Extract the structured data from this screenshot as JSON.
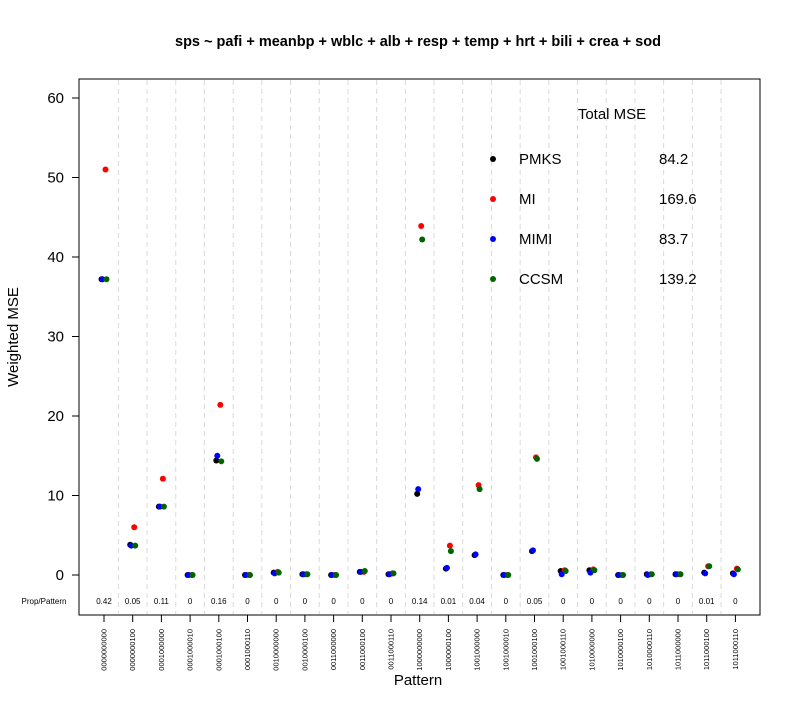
{
  "chart_data": {
    "type": "scatter",
    "title": "sps ~ pafi + meanbp + wblc + alb + resp + temp + hrt + bili + crea + sod",
    "xlabel": "Pattern",
    "ylabel": "Weighted MSE",
    "ylim": [
      0,
      60
    ],
    "yticks": [
      "0",
      "10",
      "20",
      "30",
      "40",
      "50",
      "60"
    ],
    "grid": "vertical dashed",
    "categories": [
      "0000000000",
      "0000000100",
      "0001000000",
      "0001000010",
      "0001000100",
      "0001000110",
      "0010000000",
      "0010000100",
      "0011000000",
      "0011000100",
      "0011000110",
      "1000000000",
      "1000000100",
      "1001000000",
      "1001000010",
      "1001000100",
      "1001000110",
      "1010000000",
      "1010000100",
      "1010000110",
      "1011000000",
      "1011000100",
      "1011000110"
    ],
    "prop_label": "Prop/Pattern",
    "prop_values": [
      "0.42",
      "0.05",
      "0.11",
      "0",
      "0.16",
      "0",
      "0",
      "0",
      "0",
      "0",
      "0",
      "0.14",
      "0.01",
      "0.04",
      "0",
      "0.05",
      "0",
      "0",
      "0",
      "0",
      "0",
      "0.01",
      "0"
    ],
    "series": [
      {
        "name": "PMKS",
        "color": "#000000",
        "values": [
          37.2,
          3.8,
          8.6,
          0.0,
          14.4,
          0.0,
          0.3,
          0.1,
          0.0,
          0.4,
          0.1,
          10.2,
          0.8,
          2.5,
          0.0,
          3.0,
          0.5,
          0.6,
          0.0,
          0.1,
          0.1,
          0.3,
          0.2
        ]
      },
      {
        "name": "MI",
        "color": "#ff0000",
        "values": [
          51.0,
          6.0,
          12.1,
          0.0,
          21.4,
          0.0,
          0.4,
          0.1,
          0.0,
          0.4,
          0.2,
          43.9,
          3.7,
          11.3,
          0.0,
          14.8,
          0.6,
          0.7,
          0.0,
          0.1,
          0.1,
          1.1,
          0.8
        ]
      },
      {
        "name": "MIMI",
        "color": "#0000ff",
        "values": [
          37.2,
          3.7,
          8.6,
          0.0,
          15.0,
          0.0,
          0.2,
          0.1,
          0.0,
          0.4,
          0.1,
          10.8,
          0.9,
          2.6,
          0.0,
          3.1,
          0.1,
          0.3,
          0.0,
          0.0,
          0.1,
          0.2,
          0.1
        ]
      },
      {
        "name": "CCSM",
        "color": "#006400",
        "values": [
          37.2,
          3.7,
          8.6,
          0.0,
          14.3,
          0.0,
          0.3,
          0.1,
          0.0,
          0.5,
          0.2,
          42.2,
          3.0,
          10.8,
          0.0,
          14.6,
          0.5,
          0.6,
          0.0,
          0.1,
          0.1,
          1.1,
          0.7
        ]
      }
    ],
    "legend": {
      "title": "Total MSE",
      "placement": "top-right",
      "totals": [
        "84.2",
        "169.6",
        "83.7",
        "139.2"
      ]
    }
  }
}
